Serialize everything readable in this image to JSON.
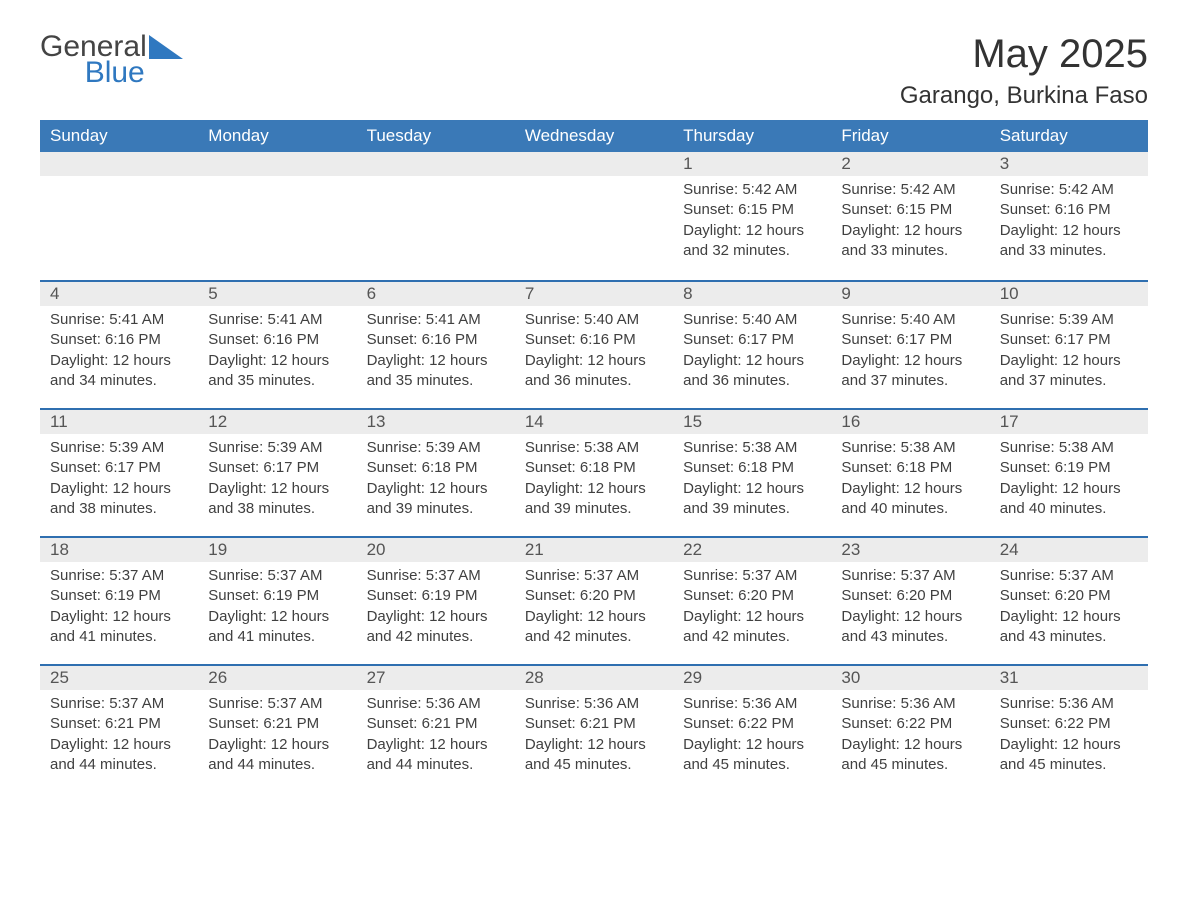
{
  "logo": {
    "word1": "General",
    "word2": "Blue",
    "shape_color": "#2f78c0"
  },
  "title": "May 2025",
  "location": "Garango, Burkina Faso",
  "colors": {
    "header_bg": "#3a79b7",
    "header_text": "#ffffff",
    "row_divider": "#2f6fb0",
    "daynum_bg": "#ececec",
    "body_text": "#404040"
  },
  "font_family": "Segoe UI",
  "day_headers": [
    "Sunday",
    "Monday",
    "Tuesday",
    "Wednesday",
    "Thursday",
    "Friday",
    "Saturday"
  ],
  "weeks": [
    [
      null,
      null,
      null,
      null,
      {
        "n": "1",
        "sunrise": "Sunrise: 5:42 AM",
        "sunset": "Sunset: 6:15 PM",
        "d1": "Daylight: 12 hours",
        "d2": "and 32 minutes."
      },
      {
        "n": "2",
        "sunrise": "Sunrise: 5:42 AM",
        "sunset": "Sunset: 6:15 PM",
        "d1": "Daylight: 12 hours",
        "d2": "and 33 minutes."
      },
      {
        "n": "3",
        "sunrise": "Sunrise: 5:42 AM",
        "sunset": "Sunset: 6:16 PM",
        "d1": "Daylight: 12 hours",
        "d2": "and 33 minutes."
      }
    ],
    [
      {
        "n": "4",
        "sunrise": "Sunrise: 5:41 AM",
        "sunset": "Sunset: 6:16 PM",
        "d1": "Daylight: 12 hours",
        "d2": "and 34 minutes."
      },
      {
        "n": "5",
        "sunrise": "Sunrise: 5:41 AM",
        "sunset": "Sunset: 6:16 PM",
        "d1": "Daylight: 12 hours",
        "d2": "and 35 minutes."
      },
      {
        "n": "6",
        "sunrise": "Sunrise: 5:41 AM",
        "sunset": "Sunset: 6:16 PM",
        "d1": "Daylight: 12 hours",
        "d2": "and 35 minutes."
      },
      {
        "n": "7",
        "sunrise": "Sunrise: 5:40 AM",
        "sunset": "Sunset: 6:16 PM",
        "d1": "Daylight: 12 hours",
        "d2": "and 36 minutes."
      },
      {
        "n": "8",
        "sunrise": "Sunrise: 5:40 AM",
        "sunset": "Sunset: 6:17 PM",
        "d1": "Daylight: 12 hours",
        "d2": "and 36 minutes."
      },
      {
        "n": "9",
        "sunrise": "Sunrise: 5:40 AM",
        "sunset": "Sunset: 6:17 PM",
        "d1": "Daylight: 12 hours",
        "d2": "and 37 minutes."
      },
      {
        "n": "10",
        "sunrise": "Sunrise: 5:39 AM",
        "sunset": "Sunset: 6:17 PM",
        "d1": "Daylight: 12 hours",
        "d2": "and 37 minutes."
      }
    ],
    [
      {
        "n": "11",
        "sunrise": "Sunrise: 5:39 AM",
        "sunset": "Sunset: 6:17 PM",
        "d1": "Daylight: 12 hours",
        "d2": "and 38 minutes."
      },
      {
        "n": "12",
        "sunrise": "Sunrise: 5:39 AM",
        "sunset": "Sunset: 6:17 PM",
        "d1": "Daylight: 12 hours",
        "d2": "and 38 minutes."
      },
      {
        "n": "13",
        "sunrise": "Sunrise: 5:39 AM",
        "sunset": "Sunset: 6:18 PM",
        "d1": "Daylight: 12 hours",
        "d2": "and 39 minutes."
      },
      {
        "n": "14",
        "sunrise": "Sunrise: 5:38 AM",
        "sunset": "Sunset: 6:18 PM",
        "d1": "Daylight: 12 hours",
        "d2": "and 39 minutes."
      },
      {
        "n": "15",
        "sunrise": "Sunrise: 5:38 AM",
        "sunset": "Sunset: 6:18 PM",
        "d1": "Daylight: 12 hours",
        "d2": "and 39 minutes."
      },
      {
        "n": "16",
        "sunrise": "Sunrise: 5:38 AM",
        "sunset": "Sunset: 6:18 PM",
        "d1": "Daylight: 12 hours",
        "d2": "and 40 minutes."
      },
      {
        "n": "17",
        "sunrise": "Sunrise: 5:38 AM",
        "sunset": "Sunset: 6:19 PM",
        "d1": "Daylight: 12 hours",
        "d2": "and 40 minutes."
      }
    ],
    [
      {
        "n": "18",
        "sunrise": "Sunrise: 5:37 AM",
        "sunset": "Sunset: 6:19 PM",
        "d1": "Daylight: 12 hours",
        "d2": "and 41 minutes."
      },
      {
        "n": "19",
        "sunrise": "Sunrise: 5:37 AM",
        "sunset": "Sunset: 6:19 PM",
        "d1": "Daylight: 12 hours",
        "d2": "and 41 minutes."
      },
      {
        "n": "20",
        "sunrise": "Sunrise: 5:37 AM",
        "sunset": "Sunset: 6:19 PM",
        "d1": "Daylight: 12 hours",
        "d2": "and 42 minutes."
      },
      {
        "n": "21",
        "sunrise": "Sunrise: 5:37 AM",
        "sunset": "Sunset: 6:20 PM",
        "d1": "Daylight: 12 hours",
        "d2": "and 42 minutes."
      },
      {
        "n": "22",
        "sunrise": "Sunrise: 5:37 AM",
        "sunset": "Sunset: 6:20 PM",
        "d1": "Daylight: 12 hours",
        "d2": "and 42 minutes."
      },
      {
        "n": "23",
        "sunrise": "Sunrise: 5:37 AM",
        "sunset": "Sunset: 6:20 PM",
        "d1": "Daylight: 12 hours",
        "d2": "and 43 minutes."
      },
      {
        "n": "24",
        "sunrise": "Sunrise: 5:37 AM",
        "sunset": "Sunset: 6:20 PM",
        "d1": "Daylight: 12 hours",
        "d2": "and 43 minutes."
      }
    ],
    [
      {
        "n": "25",
        "sunrise": "Sunrise: 5:37 AM",
        "sunset": "Sunset: 6:21 PM",
        "d1": "Daylight: 12 hours",
        "d2": "and 44 minutes."
      },
      {
        "n": "26",
        "sunrise": "Sunrise: 5:37 AM",
        "sunset": "Sunset: 6:21 PM",
        "d1": "Daylight: 12 hours",
        "d2": "and 44 minutes."
      },
      {
        "n": "27",
        "sunrise": "Sunrise: 5:36 AM",
        "sunset": "Sunset: 6:21 PM",
        "d1": "Daylight: 12 hours",
        "d2": "and 44 minutes."
      },
      {
        "n": "28",
        "sunrise": "Sunrise: 5:36 AM",
        "sunset": "Sunset: 6:21 PM",
        "d1": "Daylight: 12 hours",
        "d2": "and 45 minutes."
      },
      {
        "n": "29",
        "sunrise": "Sunrise: 5:36 AM",
        "sunset": "Sunset: 6:22 PM",
        "d1": "Daylight: 12 hours",
        "d2": "and 45 minutes."
      },
      {
        "n": "30",
        "sunrise": "Sunrise: 5:36 AM",
        "sunset": "Sunset: 6:22 PM",
        "d1": "Daylight: 12 hours",
        "d2": "and 45 minutes."
      },
      {
        "n": "31",
        "sunrise": "Sunrise: 5:36 AM",
        "sunset": "Sunset: 6:22 PM",
        "d1": "Daylight: 12 hours",
        "d2": "and 45 minutes."
      }
    ]
  ]
}
